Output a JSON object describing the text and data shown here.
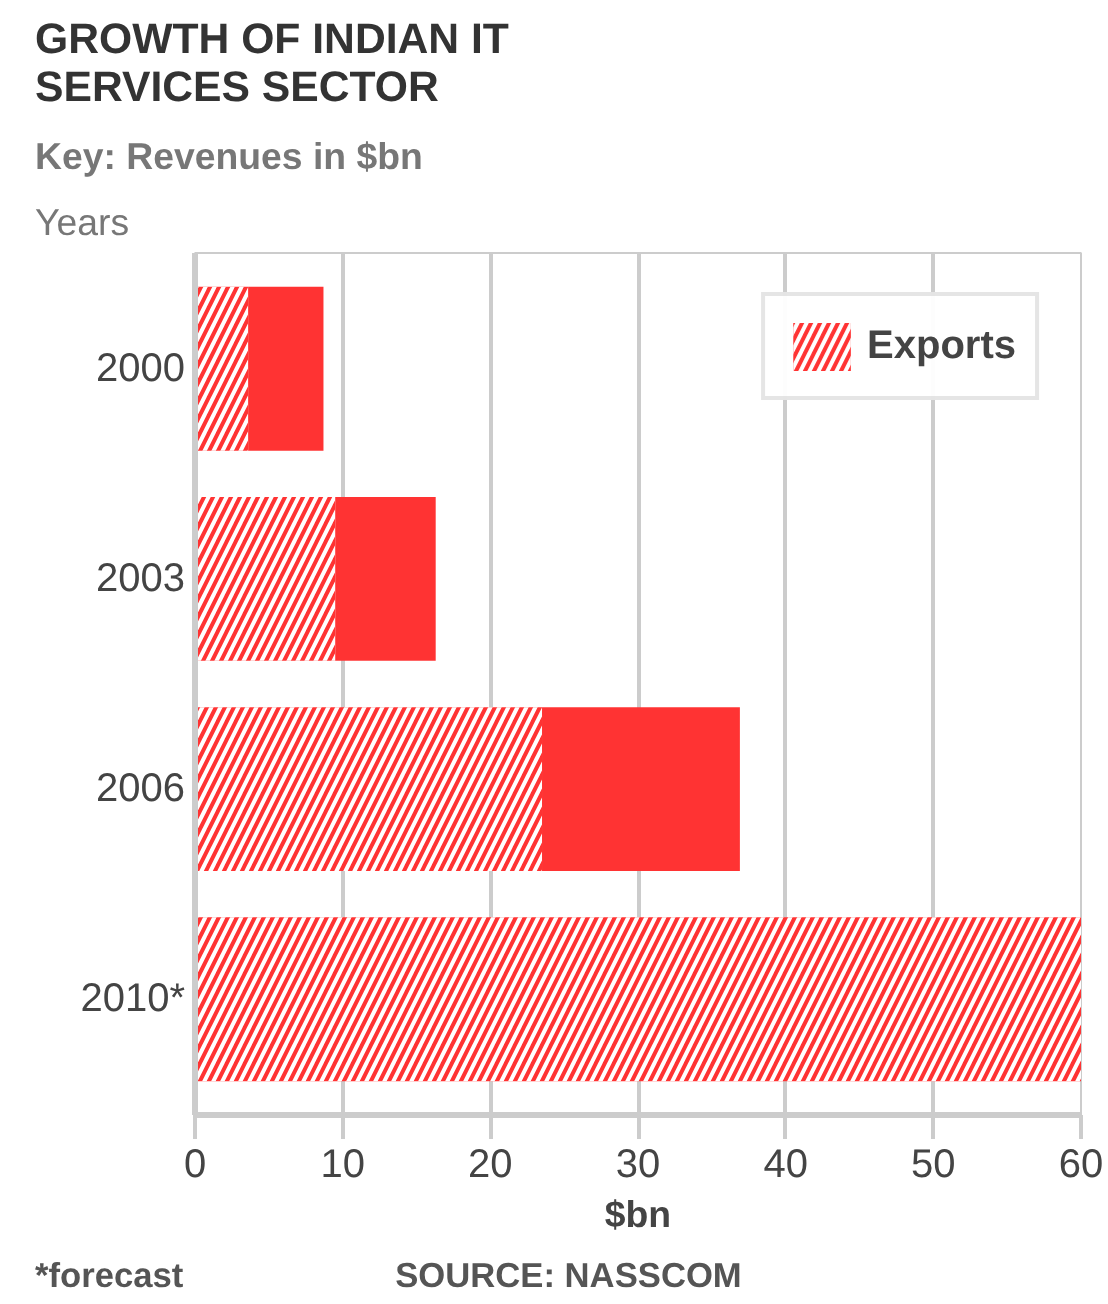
{
  "chart_data": {
    "type": "bar",
    "orientation": "horizontal",
    "stacked": true,
    "title": "GROWTH OF INDIAN IT\nSERVICES SECTOR",
    "subtitle": "Key: Revenues in $bn",
    "ylabel": "Years",
    "xlabel": "$bn",
    "categories": [
      "2000",
      "2003",
      "2006",
      "2010*"
    ],
    "series": [
      {
        "name": "Exports",
        "color": "#ff3333",
        "values": [
          3.6,
          9.5,
          23.5,
          60
        ]
      },
      {
        "color": "#ff3333",
        "values": [
          5.1,
          6.8,
          13.4,
          null
        ]
      }
    ],
    "xlim": [
      0,
      60
    ],
    "xticks": [
      0,
      10,
      20,
      30,
      40,
      50,
      60
    ],
    "grid": "x",
    "legend": "top right",
    "annotations": [
      "*forecast",
      "SOURCE: NASSCOM"
    ]
  }
}
